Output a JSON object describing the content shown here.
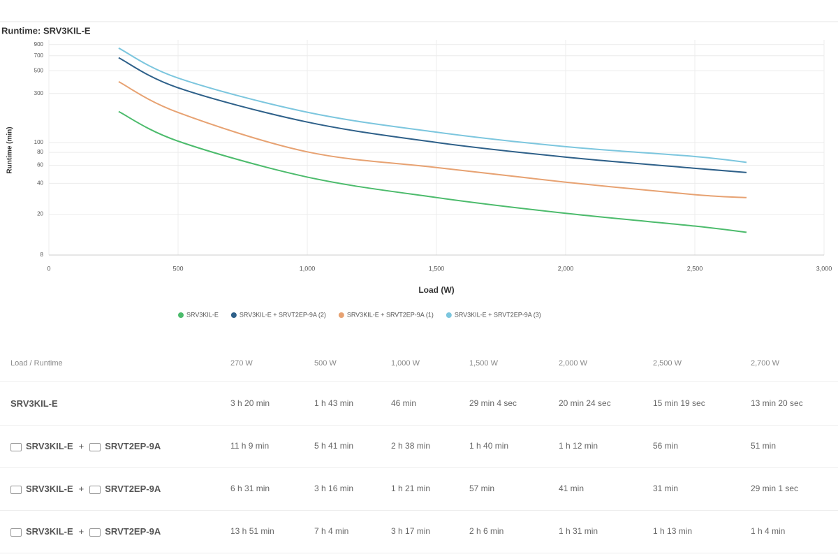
{
  "chart_data": {
    "type": "line",
    "title": "Runtime: SRV3KIL-E",
    "x_label": "Load (W)",
    "y_label": "Runtime (min)",
    "x": [
      270,
      500,
      1000,
      1500,
      2000,
      2500,
      2700
    ],
    "series": [
      {
        "name": "SRV3KIL-E",
        "color": "#4cbb6c",
        "values": [
          200,
          103,
          46,
          29.07,
          20.4,
          15.32,
          13.33
        ]
      },
      {
        "name": "SRV3KIL-E + SRVT2EP-9A (2)",
        "color": "#2e6089",
        "values": [
          669,
          341,
          158,
          100,
          72,
          56,
          51
        ]
      },
      {
        "name": "SRV3KIL-E + SRVT2EP-9A (1)",
        "color": "#e7a272",
        "values": [
          391,
          196,
          81,
          57,
          41,
          31,
          29.02
        ]
      },
      {
        "name": "SRV3KIL-E + SRVT2EP-9A (3)",
        "color": "#7cc6de",
        "values": [
          831,
          424,
          197,
          126,
          91,
          73,
          64
        ]
      }
    ],
    "xlim": [
      0,
      3000
    ],
    "xticks": [
      0,
      500,
      {
        "value": 1000,
        "label": "1,000"
      },
      {
        "value": 1500,
        "label": "1,500"
      },
      {
        "value": 2000,
        "label": "2,000"
      },
      {
        "value": 2500,
        "label": "2,500"
      },
      {
        "value": 3000,
        "label": "3,000"
      }
    ],
    "ylim": [
      8,
      1000
    ],
    "yscale": "log",
    "yticks": [
      8,
      20,
      40,
      60,
      80,
      100,
      300,
      500,
      700,
      900
    ],
    "grid": true,
    "legend": "bottom"
  },
  "table": {
    "header": [
      "Load / Runtime",
      "270 W",
      "500 W",
      "1,000 W",
      "1,500 W",
      "2,000 W",
      "2,500 W",
      "2,700 W"
    ],
    "rows": [
      {
        "label": [
          "SRV3KIL-E"
        ],
        "cells": [
          "3 h 20 min",
          "1 h 43 min",
          "46 min",
          "29 min 4 sec",
          "20 min 24 sec",
          "15 min 19 sec",
          "13 min 20 sec"
        ]
      },
      {
        "label": [
          "SRV3KIL-E",
          "+",
          "SRVT2EP-9A"
        ],
        "cells": [
          "11 h 9 min",
          "5 h 41 min",
          "2 h 38 min",
          "1 h 40 min",
          "1 h 12 min",
          "56 min",
          "51 min"
        ]
      },
      {
        "label": [
          "SRV3KIL-E",
          "+",
          "SRVT2EP-9A"
        ],
        "cells": [
          "6 h 31 min",
          "3 h 16 min",
          "1 h 21 min",
          "57 min",
          "41 min",
          "31 min",
          "29 min 1 sec"
        ]
      },
      {
        "label": [
          "SRV3KIL-E",
          "+",
          "SRVT2EP-9A"
        ],
        "cells": [
          "13 h 51 min",
          "7 h 4 min",
          "3 h 17 min",
          "2 h 6 min",
          "1 h 31 min",
          "1 h 13 min",
          "1 h 4 min"
        ]
      }
    ]
  }
}
